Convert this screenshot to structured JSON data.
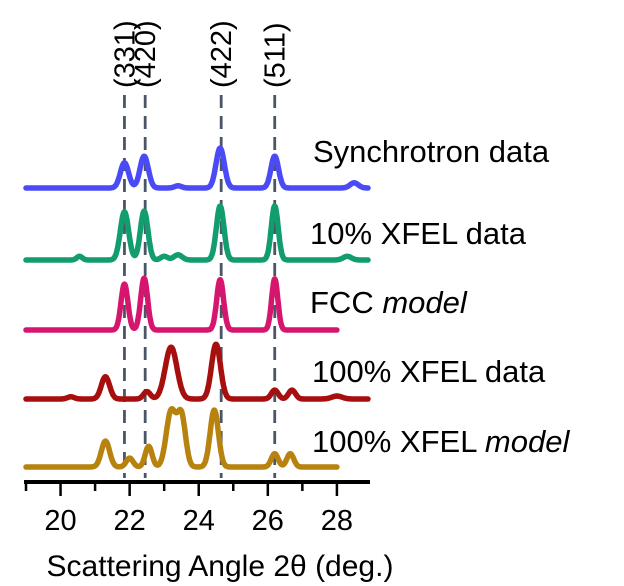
{
  "chart_data": {
    "type": "line",
    "xlabel": "Scattering Angle 2θ (deg.)",
    "xlim": [
      19.0,
      28.9
    ],
    "xticks": [
      20,
      22,
      24,
      26,
      28
    ],
    "reference_lines": [
      {
        "label": "(331)",
        "x": 21.85
      },
      {
        "label": "(420)",
        "x": 22.45
      },
      {
        "label": "(422)",
        "x": 24.65
      },
      {
        "label": "(511)",
        "x": 26.2
      }
    ],
    "series": [
      {
        "name": "Synchrotron data",
        "name_parts": [
          {
            "text": "Synchrotron data",
            "italic": false
          }
        ],
        "color": "#4a4af6",
        "x_range": [
          19.0,
          28.9
        ],
        "baseline": 0,
        "peaks": [
          {
            "x": 21.85,
            "h": 0.34,
            "w": 0.12
          },
          {
            "x": 22.42,
            "h": 0.43,
            "w": 0.12
          },
          {
            "x": 23.4,
            "h": 0.03,
            "w": 0.1
          },
          {
            "x": 24.62,
            "h": 0.54,
            "w": 0.12
          },
          {
            "x": 26.2,
            "h": 0.43,
            "w": 0.11
          },
          {
            "x": 28.5,
            "h": 0.07,
            "w": 0.12
          }
        ]
      },
      {
        "name": "10% XFEL data",
        "name_parts": [
          {
            "text": "10% XFEL data",
            "italic": false
          }
        ],
        "color": "#119d6e",
        "x_range": [
          19.0,
          28.9
        ],
        "baseline": 0,
        "peaks": [
          {
            "x": 20.55,
            "h": 0.05,
            "w": 0.08
          },
          {
            "x": 21.85,
            "h": 0.65,
            "w": 0.12
          },
          {
            "x": 22.42,
            "h": 0.66,
            "w": 0.11
          },
          {
            "x": 23.0,
            "h": 0.05,
            "w": 0.1
          },
          {
            "x": 23.4,
            "h": 0.07,
            "w": 0.12
          },
          {
            "x": 24.62,
            "h": 0.73,
            "w": 0.11
          },
          {
            "x": 26.2,
            "h": 0.73,
            "w": 0.1
          },
          {
            "x": 28.3,
            "h": 0.05,
            "w": 0.12
          }
        ]
      },
      {
        "name": "FCC model",
        "name_parts": [
          {
            "text": "FCC ",
            "italic": false
          },
          {
            "text": "model",
            "italic": true
          }
        ],
        "color": "#d6166e",
        "x_range": [
          19.0,
          28.0
        ],
        "baseline": 0,
        "peaks": [
          {
            "x": 21.85,
            "h": 0.62,
            "w": 0.1
          },
          {
            "x": 22.42,
            "h": 0.7,
            "w": 0.1
          },
          {
            "x": 24.62,
            "h": 0.68,
            "w": 0.1
          },
          {
            "x": 26.2,
            "h": 0.69,
            "w": 0.09
          }
        ]
      },
      {
        "name": "100% XFEL data",
        "name_parts": [
          {
            "text": "100% XFEL data",
            "italic": false
          }
        ],
        "color": "#a70e0e",
        "x_range": [
          19.0,
          28.9
        ],
        "baseline": 0,
        "peaks": [
          {
            "x": 20.3,
            "h": 0.03,
            "w": 0.1
          },
          {
            "x": 21.3,
            "h": 0.3,
            "w": 0.12
          },
          {
            "x": 22.5,
            "h": 0.1,
            "w": 0.1
          },
          {
            "x": 23.2,
            "h": 0.7,
            "w": 0.17
          },
          {
            "x": 24.5,
            "h": 0.74,
            "w": 0.13
          },
          {
            "x": 26.2,
            "h": 0.12,
            "w": 0.1
          },
          {
            "x": 26.7,
            "h": 0.12,
            "w": 0.1
          },
          {
            "x": 28.0,
            "h": 0.04,
            "w": 0.15
          }
        ]
      },
      {
        "name": "100% XFEL model",
        "name_parts": [
          {
            "text": "100% XFEL ",
            "italic": false
          },
          {
            "text": "model",
            "italic": true
          }
        ],
        "color": "#b7820d",
        "x_range": [
          19.0,
          28.0
        ],
        "baseline": 0,
        "peaks": [
          {
            "x": 21.3,
            "h": 0.35,
            "w": 0.12
          },
          {
            "x": 22.0,
            "h": 0.12,
            "w": 0.1
          },
          {
            "x": 22.55,
            "h": 0.28,
            "w": 0.1
          },
          {
            "x": 23.2,
            "h": 0.75,
            "w": 0.14
          },
          {
            "x": 23.5,
            "h": 0.68,
            "w": 0.12
          },
          {
            "x": 24.45,
            "h": 0.77,
            "w": 0.12
          },
          {
            "x": 26.2,
            "h": 0.18,
            "w": 0.1
          },
          {
            "x": 26.65,
            "h": 0.18,
            "w": 0.1
          }
        ]
      }
    ]
  }
}
